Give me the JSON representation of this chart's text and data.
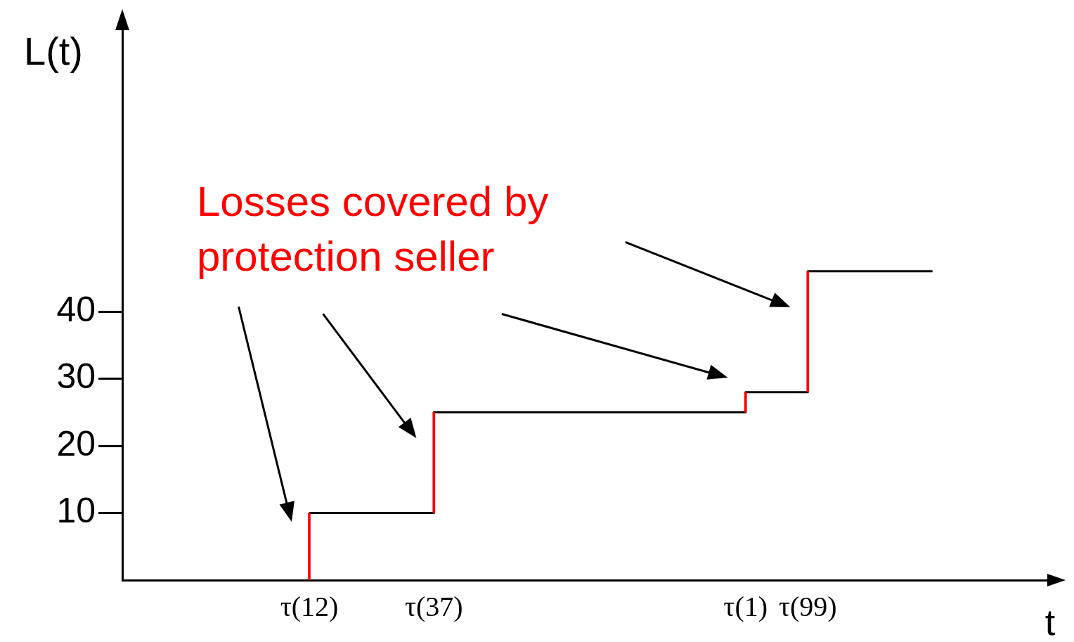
{
  "chart_data": {
    "type": "step",
    "xlabel": "t",
    "ylabel": "L(t)",
    "annotations": [
      "Losses covered by protection seller"
    ],
    "categories": [
      null,
      null,
      null,
      null,
      null,
      null,
      "τ(12)",
      null,
      null,
      null,
      "τ(37)",
      null,
      null,
      null,
      null,
      null,
      null,
      null,
      null,
      null,
      "τ(1)",
      null,
      "τ(99)",
      null,
      null,
      null,
      null,
      null,
      null,
      null,
      null
    ],
    "series": [
      {
        "color": "#000000",
        "values": [
          null,
          null,
          null,
          null,
          null,
          null,
          10,
          10,
          10,
          10,
          25,
          25,
          25,
          25,
          25,
          25,
          25,
          25,
          25,
          25,
          28,
          28,
          46,
          46,
          46,
          46,
          46,
          null,
          null,
          null,
          null
        ]
      },
      {
        "type": "bar",
        "color": "#ff0000",
        "values": [
          null,
          null,
          null,
          null,
          null,
          null,
          10,
          null,
          null,
          null,
          15,
          null,
          null,
          null,
          null,
          null,
          null,
          null,
          null,
          null,
          3,
          null,
          18,
          null,
          null,
          null,
          null,
          null,
          null,
          null,
          null
        ],
        "base": [
          null,
          null,
          null,
          null,
          null,
          null,
          0,
          null,
          null,
          null,
          10,
          null,
          null,
          null,
          null,
          null,
          null,
          null,
          null,
          null,
          25,
          null,
          28,
          null,
          null,
          null,
          null,
          null,
          null,
          null,
          null
        ]
      }
    ],
    "ylim": [
      0,
      82
    ],
    "yticks": [
      10,
      20,
      30,
      40
    ],
    "grid": false,
    "legend": false,
    "marker": "none"
  }
}
